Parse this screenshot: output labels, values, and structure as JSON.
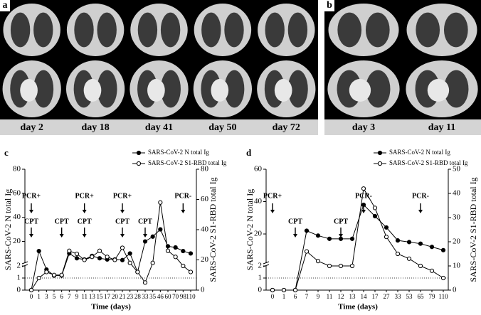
{
  "panel_a": {
    "label": "a",
    "days": [
      "day 2",
      "day 18",
      "day 41",
      "day 50",
      "day 72"
    ]
  },
  "panel_b": {
    "label": "b",
    "days": [
      "day 3",
      "day 11"
    ]
  },
  "chart_data": [
    {
      "type": "line",
      "label": "c",
      "x_label": "Time (days)",
      "y_label": "SARS-CoV-2 N total Ig",
      "y2_label": "SARS-CoV-2 S1-RBD total Ig",
      "categories": [
        "0",
        "1",
        "3",
        "5",
        "6",
        "7",
        "9",
        "11",
        "13",
        "15",
        "17",
        "20",
        "21",
        "23",
        "28",
        "33",
        "35",
        "46",
        "60",
        "70",
        "98",
        "110"
      ],
      "ylim": [
        0,
        80
      ],
      "yticks": [
        0,
        1,
        2,
        20,
        40,
        60,
        80
      ],
      "ybreak": 2,
      "y2lim": [
        0,
        80
      ],
      "y2ticks": [
        0,
        20,
        40,
        60,
        80
      ],
      "series": [
        {
          "name": "SARS-CoV-2 N total Ig",
          "color": "#000000",
          "marker": "filled",
          "values": [
            0,
            12,
            1.7,
            1.2,
            1.2,
            10,
            6,
            5,
            8,
            6,
            5,
            5,
            4.5,
            10,
            1.5,
            20,
            24,
            30,
            16,
            15,
            12,
            10
          ]
        },
        {
          "name": "SARS-CoV-2 S1-RBD total Ig",
          "color": "#000000",
          "marker": "open",
          "axis": "y2",
          "values": [
            0,
            8,
            12,
            10,
            10,
            26,
            24,
            20,
            22,
            26,
            22,
            20,
            28,
            18,
            12,
            5,
            18,
            58,
            26,
            22,
            16,
            12
          ]
        }
      ],
      "pcr": [
        {
          "text": "PCR+",
          "x": "0"
        },
        {
          "text": "PCR+",
          "x": "11"
        },
        {
          "text": "PCR+",
          "x": "21"
        },
        {
          "text": "PCR-",
          "x": "98"
        }
      ],
      "cpt": [
        {
          "text": "CPT",
          "x": "0"
        },
        {
          "text": "CPT",
          "x": "6"
        },
        {
          "text": "CPT",
          "x": "11"
        },
        {
          "text": "CPT",
          "x": "21"
        },
        {
          "text": "CPT",
          "x": "33"
        }
      ]
    },
    {
      "type": "line",
      "label": "d",
      "x_label": "Time (days)",
      "y_label": "SARS-CoV-2 N total Ig",
      "y2_label": "SARS-CoV-2 S1-RBD total Ig",
      "categories": [
        "0",
        "1",
        "6",
        "7",
        "9",
        "11",
        "12",
        "13",
        "14",
        "17",
        "27",
        "33",
        "53",
        "65",
        "79",
        "110"
      ],
      "ylim": [
        0,
        60
      ],
      "yticks": [
        0,
        1,
        2,
        20,
        40,
        60
      ],
      "ybreak": 2,
      "y2lim": [
        0,
        50
      ],
      "y2ticks": [
        0,
        10,
        20,
        30,
        40,
        50
      ],
      "series": [
        {
          "name": "SARS-CoV-2 N total Ig",
          "color": "#000000",
          "marker": "filled",
          "values": [
            0,
            0,
            0,
            22,
            19,
            17,
            17,
            17,
            38,
            31,
            24,
            16,
            15,
            14,
            12,
            10
          ]
        },
        {
          "name": "SARS-CoV-2 S1-RBD total Ig",
          "color": "#000000",
          "marker": "open",
          "axis": "y2",
          "values": [
            0,
            0,
            0,
            16,
            12,
            10,
            10,
            10,
            42,
            34,
            22,
            15,
            13,
            10,
            8,
            5
          ]
        }
      ],
      "pcr": [
        {
          "text": "PCR+",
          "x": "0"
        },
        {
          "text": "PCR-",
          "x": "14"
        },
        {
          "text": "PCR-",
          "x": "65"
        }
      ],
      "cpt": [
        {
          "text": "CPT",
          "x": "6"
        },
        {
          "text": "CPT",
          "x": "12"
        }
      ]
    }
  ]
}
